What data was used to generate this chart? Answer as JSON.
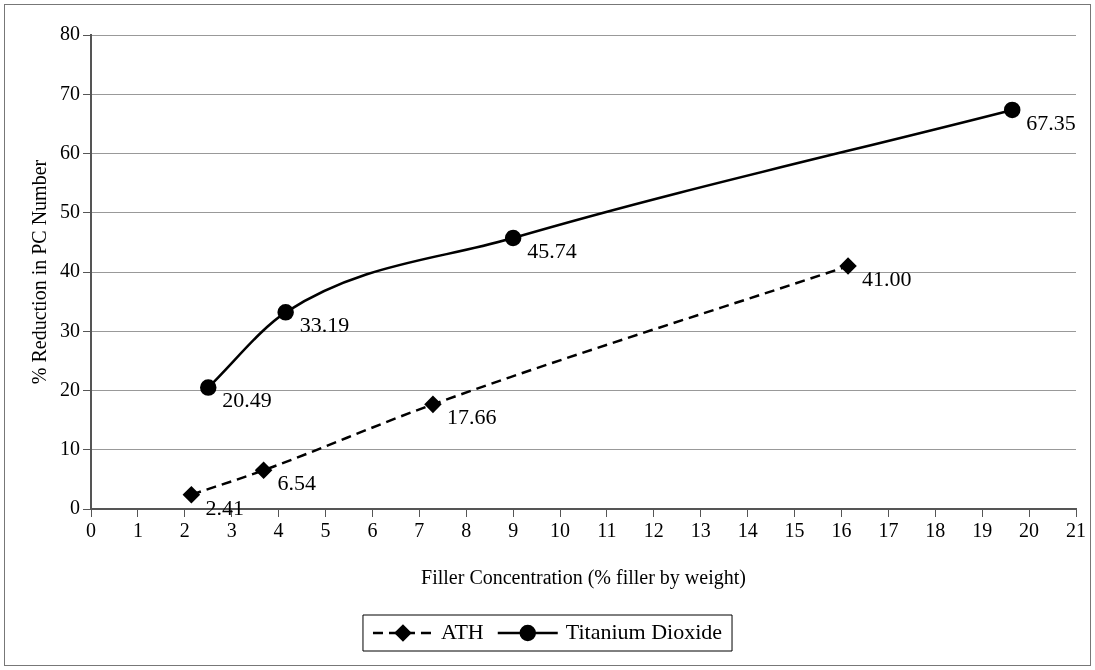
{
  "chart_data": {
    "type": "line",
    "xlabel": "Filler Concentration (% filler by weight)",
    "ylabel": "% Reduction in PC Number",
    "xlim": [
      0,
      21
    ],
    "xticks": [
      0,
      1,
      2,
      3,
      4,
      5,
      6,
      7,
      8,
      9,
      10,
      11,
      12,
      13,
      14,
      15,
      16,
      17,
      18,
      19,
      20,
      21
    ],
    "ylim": [
      0,
      80
    ],
    "yticks": [
      0,
      10,
      20,
      30,
      40,
      50,
      60,
      70,
      80
    ],
    "grid": "y",
    "legend": "bottom",
    "series": [
      {
        "name": "ATH",
        "color": "#000000",
        "marker": "diamond",
        "line_style": "dashed",
        "x": [
          2.14,
          3.68,
          7.29,
          16.14
        ],
        "values": [
          2.41,
          6.54,
          17.66,
          41.0
        ],
        "value_labels": [
          "2.41",
          "6.54",
          "17.66",
          "41.00"
        ]
      },
      {
        "name": "Titanium Dioxide",
        "color": "#000000",
        "marker": "circle",
        "line_style": "solid",
        "x": [
          2.5,
          4.15,
          9.0,
          19.64
        ],
        "values": [
          20.49,
          33.19,
          45.74,
          67.35
        ],
        "value_labels": [
          "20.49",
          "33.19",
          "45.74",
          "67.35"
        ]
      }
    ]
  }
}
